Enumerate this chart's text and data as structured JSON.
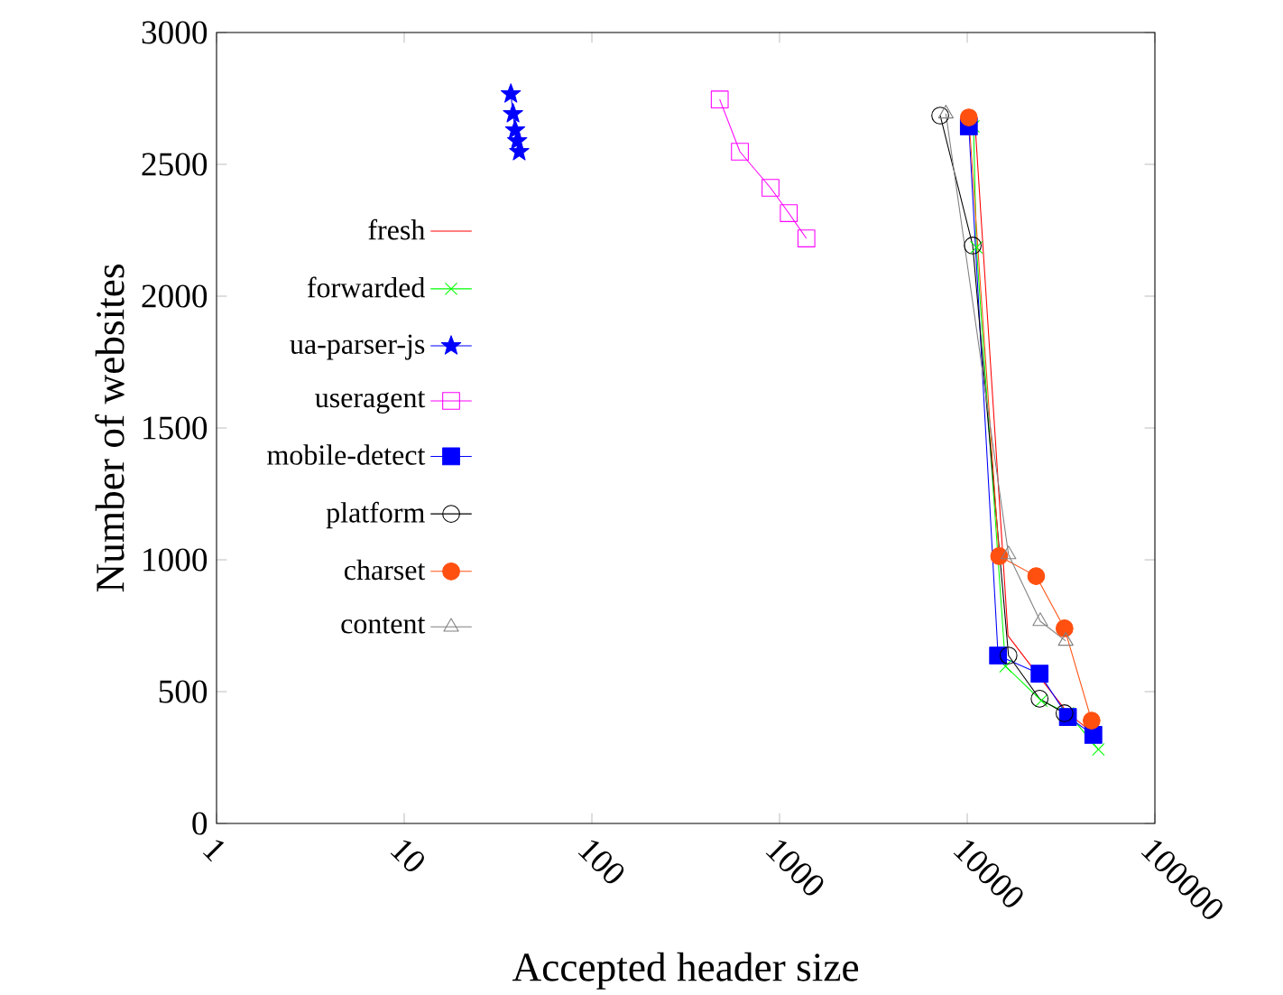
{
  "chart_data": {
    "type": "line",
    "xlabel": "Accepted header size",
    "ylabel": "Number of websites",
    "log": "x",
    "xlim": [
      1,
      100000
    ],
    "ylim": [
      0,
      3000
    ],
    "xticks": [
      1,
      10,
      100,
      1000,
      10000,
      100000
    ],
    "yticks": [
      0,
      500,
      1000,
      1500,
      2000,
      2500,
      3000
    ],
    "legend": "left",
    "grid": false,
    "series": [
      {
        "name": "fresh",
        "color": "#ff0000",
        "marker": "none",
        "x": [
          11000,
          16500,
          24300,
          34400,
          47000
        ],
        "values": [
          2658,
          712,
          555,
          418,
          342
        ]
      },
      {
        "name": "forwarded",
        "color": "#00ff00",
        "marker": "cross",
        "x": [
          10800,
          11200,
          16000,
          24800,
          34400,
          50000
        ],
        "values": [
          2644,
          2185,
          596,
          466,
          418,
          281
        ]
      },
      {
        "name": "ua-parser-js",
        "color": "#0000ff",
        "marker": "star",
        "x": [
          37,
          38,
          39,
          40,
          41
        ],
        "values": [
          2767,
          2692,
          2630,
          2589,
          2548
        ]
      },
      {
        "name": "useragent",
        "color": "#ff00ff",
        "marker": "square",
        "x": [
          480,
          615,
          895,
          1120,
          1390
        ],
        "values": [
          2746,
          2548,
          2411,
          2315,
          2219
        ]
      },
      {
        "name": "mobile-detect",
        "color": "#0000ff",
        "marker": "square",
        "x": [
          10200,
          14600,
          24300,
          34400,
          47000
        ],
        "values": [
          2644,
          637,
          568,
          404,
          336
        ]
      },
      {
        "name": "platform",
        "color": "#000000",
        "marker": "circle",
        "x": [
          7180,
          10700,
          16600,
          24300,
          33000
        ],
        "values": [
          2685,
          2192,
          637,
          473,
          418
        ]
      },
      {
        "name": "charset",
        "color": "#ff5010",
        "marker": "circle",
        "x": [
          10200,
          14800,
          23300,
          33000,
          46000
        ],
        "values": [
          2678,
          1014,
          938,
          740,
          390
        ]
      },
      {
        "name": "content",
        "color": "#808080",
        "marker": "triangle",
        "x": [
          7700,
          16600,
          24500,
          33500
        ],
        "values": [
          2692,
          1020,
          767,
          692
        ]
      }
    ]
  }
}
